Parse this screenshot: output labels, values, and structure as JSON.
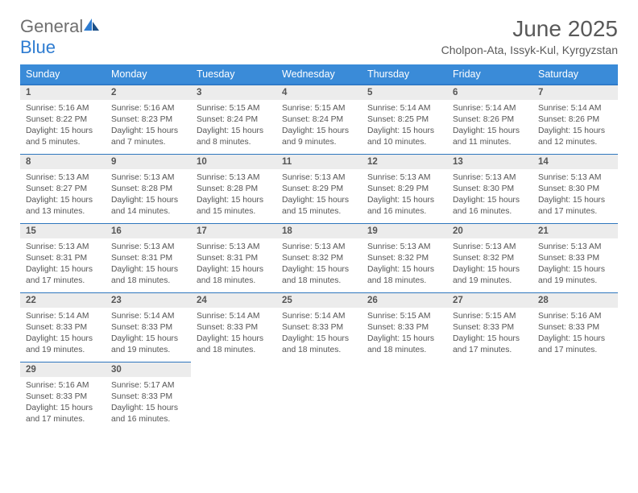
{
  "brand": {
    "general": "General",
    "blue": "Blue"
  },
  "header": {
    "title": "June 2025",
    "location": "Cholpon-Ata, Issyk-Kul, Kyrgyzstan",
    "title_fontsize": 28,
    "title_color": "#595959",
    "location_fontsize": 14,
    "location_color": "#595959"
  },
  "style": {
    "header_bg": "#3a8bd8",
    "header_text": "#ffffff",
    "daynum_bg": "#ececec",
    "daynum_text": "#555555",
    "row_rule": "#2f77be",
    "body_text": "#555555",
    "body_fontsize": 10.3,
    "daynum_fontsize": 11.5,
    "header_fontsize": 12.5
  },
  "weekdays": [
    "Sunday",
    "Monday",
    "Tuesday",
    "Wednesday",
    "Thursday",
    "Friday",
    "Saturday"
  ],
  "days": [
    {
      "n": "1",
      "sr": "Sunrise: 5:16 AM",
      "ss": "Sunset: 8:22 PM",
      "dl": "Daylight: 15 hours and 5 minutes."
    },
    {
      "n": "2",
      "sr": "Sunrise: 5:16 AM",
      "ss": "Sunset: 8:23 PM",
      "dl": "Daylight: 15 hours and 7 minutes."
    },
    {
      "n": "3",
      "sr": "Sunrise: 5:15 AM",
      "ss": "Sunset: 8:24 PM",
      "dl": "Daylight: 15 hours and 8 minutes."
    },
    {
      "n": "4",
      "sr": "Sunrise: 5:15 AM",
      "ss": "Sunset: 8:24 PM",
      "dl": "Daylight: 15 hours and 9 minutes."
    },
    {
      "n": "5",
      "sr": "Sunrise: 5:14 AM",
      "ss": "Sunset: 8:25 PM",
      "dl": "Daylight: 15 hours and 10 minutes."
    },
    {
      "n": "6",
      "sr": "Sunrise: 5:14 AM",
      "ss": "Sunset: 8:26 PM",
      "dl": "Daylight: 15 hours and 11 minutes."
    },
    {
      "n": "7",
      "sr": "Sunrise: 5:14 AM",
      "ss": "Sunset: 8:26 PM",
      "dl": "Daylight: 15 hours and 12 minutes."
    },
    {
      "n": "8",
      "sr": "Sunrise: 5:13 AM",
      "ss": "Sunset: 8:27 PM",
      "dl": "Daylight: 15 hours and 13 minutes."
    },
    {
      "n": "9",
      "sr": "Sunrise: 5:13 AM",
      "ss": "Sunset: 8:28 PM",
      "dl": "Daylight: 15 hours and 14 minutes."
    },
    {
      "n": "10",
      "sr": "Sunrise: 5:13 AM",
      "ss": "Sunset: 8:28 PM",
      "dl": "Daylight: 15 hours and 15 minutes."
    },
    {
      "n": "11",
      "sr": "Sunrise: 5:13 AM",
      "ss": "Sunset: 8:29 PM",
      "dl": "Daylight: 15 hours and 15 minutes."
    },
    {
      "n": "12",
      "sr": "Sunrise: 5:13 AM",
      "ss": "Sunset: 8:29 PM",
      "dl": "Daylight: 15 hours and 16 minutes."
    },
    {
      "n": "13",
      "sr": "Sunrise: 5:13 AM",
      "ss": "Sunset: 8:30 PM",
      "dl": "Daylight: 15 hours and 16 minutes."
    },
    {
      "n": "14",
      "sr": "Sunrise: 5:13 AM",
      "ss": "Sunset: 8:30 PM",
      "dl": "Daylight: 15 hours and 17 minutes."
    },
    {
      "n": "15",
      "sr": "Sunrise: 5:13 AM",
      "ss": "Sunset: 8:31 PM",
      "dl": "Daylight: 15 hours and 17 minutes."
    },
    {
      "n": "16",
      "sr": "Sunrise: 5:13 AM",
      "ss": "Sunset: 8:31 PM",
      "dl": "Daylight: 15 hours and 18 minutes."
    },
    {
      "n": "17",
      "sr": "Sunrise: 5:13 AM",
      "ss": "Sunset: 8:31 PM",
      "dl": "Daylight: 15 hours and 18 minutes."
    },
    {
      "n": "18",
      "sr": "Sunrise: 5:13 AM",
      "ss": "Sunset: 8:32 PM",
      "dl": "Daylight: 15 hours and 18 minutes."
    },
    {
      "n": "19",
      "sr": "Sunrise: 5:13 AM",
      "ss": "Sunset: 8:32 PM",
      "dl": "Daylight: 15 hours and 18 minutes."
    },
    {
      "n": "20",
      "sr": "Sunrise: 5:13 AM",
      "ss": "Sunset: 8:32 PM",
      "dl": "Daylight: 15 hours and 19 minutes."
    },
    {
      "n": "21",
      "sr": "Sunrise: 5:13 AM",
      "ss": "Sunset: 8:33 PM",
      "dl": "Daylight: 15 hours and 19 minutes."
    },
    {
      "n": "22",
      "sr": "Sunrise: 5:14 AM",
      "ss": "Sunset: 8:33 PM",
      "dl": "Daylight: 15 hours and 19 minutes."
    },
    {
      "n": "23",
      "sr": "Sunrise: 5:14 AM",
      "ss": "Sunset: 8:33 PM",
      "dl": "Daylight: 15 hours and 19 minutes."
    },
    {
      "n": "24",
      "sr": "Sunrise: 5:14 AM",
      "ss": "Sunset: 8:33 PM",
      "dl": "Daylight: 15 hours and 18 minutes."
    },
    {
      "n": "25",
      "sr": "Sunrise: 5:14 AM",
      "ss": "Sunset: 8:33 PM",
      "dl": "Daylight: 15 hours and 18 minutes."
    },
    {
      "n": "26",
      "sr": "Sunrise: 5:15 AM",
      "ss": "Sunset: 8:33 PM",
      "dl": "Daylight: 15 hours and 18 minutes."
    },
    {
      "n": "27",
      "sr": "Sunrise: 5:15 AM",
      "ss": "Sunset: 8:33 PM",
      "dl": "Daylight: 15 hours and 17 minutes."
    },
    {
      "n": "28",
      "sr": "Sunrise: 5:16 AM",
      "ss": "Sunset: 8:33 PM",
      "dl": "Daylight: 15 hours and 17 minutes."
    },
    {
      "n": "29",
      "sr": "Sunrise: 5:16 AM",
      "ss": "Sunset: 8:33 PM",
      "dl": "Daylight: 15 hours and 17 minutes."
    },
    {
      "n": "30",
      "sr": "Sunrise: 5:17 AM",
      "ss": "Sunset: 8:33 PM",
      "dl": "Daylight: 15 hours and 16 minutes."
    }
  ],
  "layout": {
    "start_weekday": 0,
    "weeks": 5,
    "cols": 7
  }
}
